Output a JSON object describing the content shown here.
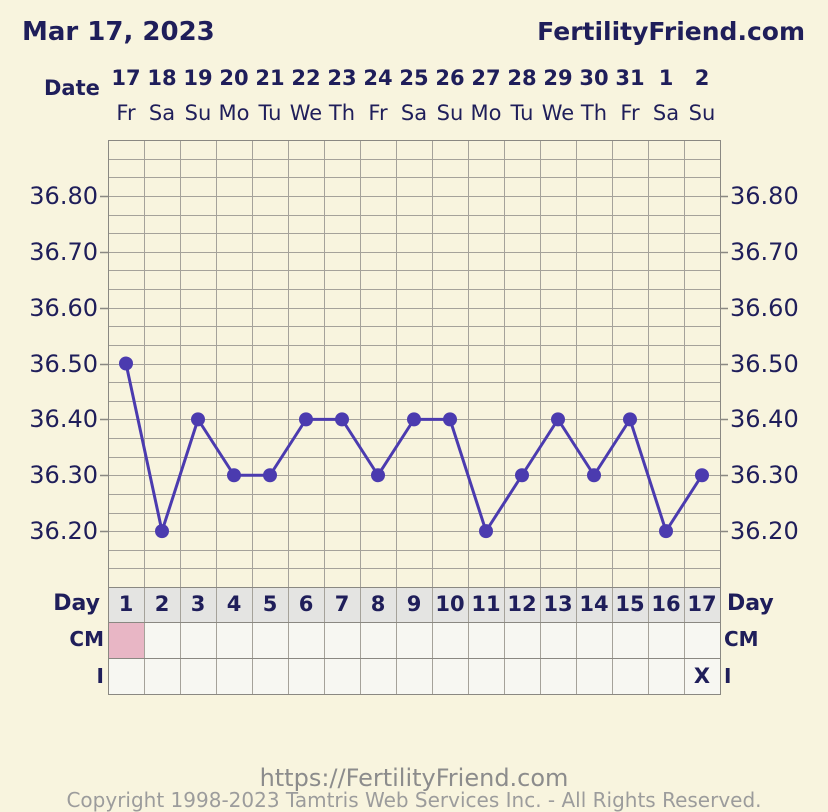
{
  "header": {
    "date": "Mar 17, 2023",
    "site": "FertilityFriend.com"
  },
  "colors": {
    "background": "#f8f4de",
    "text": "#1f1e5a",
    "series": "#4b3baf",
    "grid": "#a5a29a",
    "border": "#8a8882",
    "day_row": "#e4e4e2",
    "entry_rows": "#f7f7f2"
  },
  "chart_data": {
    "type": "line",
    "row_labels": {
      "date": "Date",
      "day": "Day",
      "cm": "CM",
      "intercourse": "I"
    },
    "dates": [
      "17",
      "18",
      "19",
      "20",
      "21",
      "22",
      "23",
      "24",
      "25",
      "26",
      "27",
      "28",
      "29",
      "30",
      "31",
      "1",
      "2"
    ],
    "weekdays": [
      "Fr",
      "Sa",
      "Su",
      "Mo",
      "Tu",
      "We",
      "Th",
      "Fr",
      "Sa",
      "Su",
      "Mo",
      "Tu",
      "We",
      "Th",
      "Fr",
      "Sa",
      "Su"
    ],
    "days": [
      "1",
      "2",
      "3",
      "4",
      "5",
      "6",
      "7",
      "8",
      "9",
      "10",
      "11",
      "12",
      "13",
      "14",
      "15",
      "16",
      "17"
    ],
    "y_ticks": [
      36.8,
      36.7,
      36.6,
      36.5,
      36.4,
      36.3,
      36.2
    ],
    "y_tick_labels": [
      "36.80",
      "36.70",
      "36.60",
      "36.50",
      "36.40",
      "36.30",
      "36.20"
    ],
    "ylim": [
      36.1,
      36.9
    ],
    "grid": true,
    "series": [
      {
        "values": [
          36.5,
          36.2,
          36.4,
          36.3,
          36.3,
          36.4,
          36.4,
          36.3,
          36.4,
          36.4,
          36.2,
          36.3,
          36.4,
          36.3,
          36.4,
          36.2,
          36.3
        ]
      }
    ],
    "cm_colors": [
      "#e8b6c5",
      null,
      null,
      null,
      null,
      null,
      null,
      null,
      null,
      null,
      null,
      null,
      null,
      null,
      null,
      null,
      null
    ],
    "intercourse": [
      null,
      null,
      null,
      null,
      null,
      null,
      null,
      null,
      null,
      null,
      null,
      null,
      null,
      null,
      null,
      null,
      "X"
    ]
  },
  "footer": {
    "url": "https://FertilityFriend.com",
    "copyright": "Copyright 1998-2023 Tamtris Web Services Inc. - All Rights Reserved."
  }
}
